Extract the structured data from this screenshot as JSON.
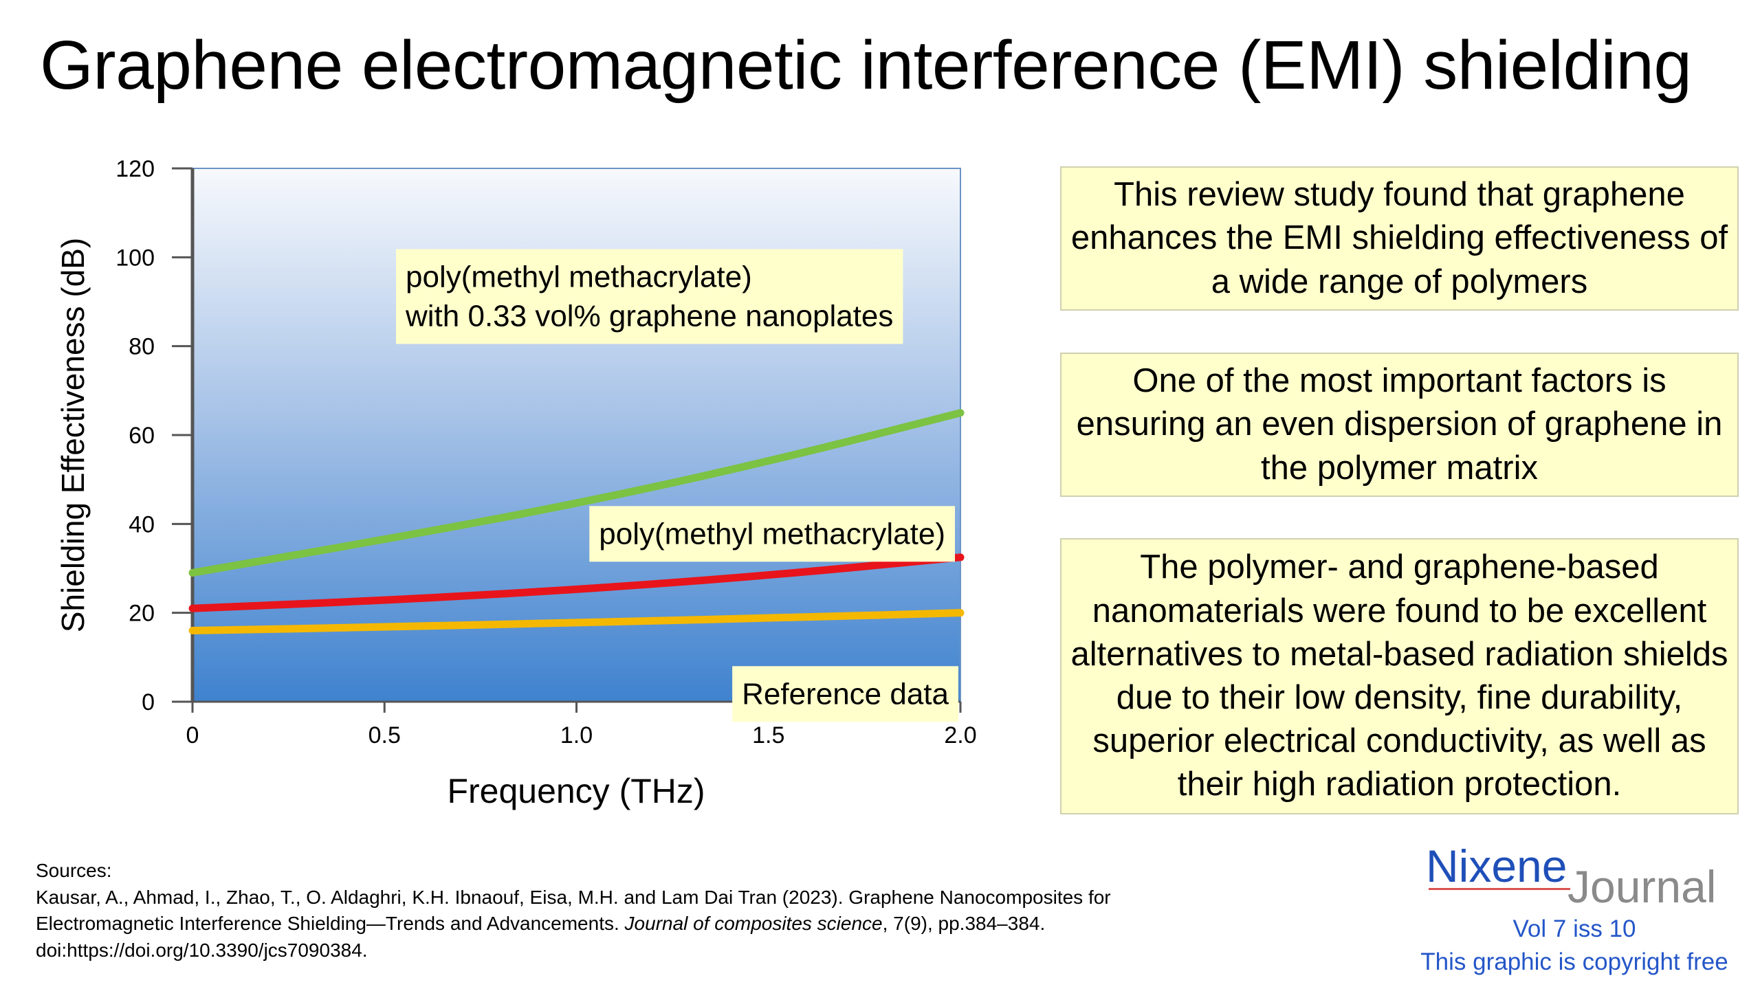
{
  "title": "Graphene electromagnetic interference (EMI) shielding",
  "chart_data": {
    "type": "line",
    "x_label": "Frequency  (THz)",
    "y_label": "Shielding Effectiveness  (dB)",
    "xlim": [
      0,
      2.0
    ],
    "ylim": [
      0,
      120
    ],
    "x_ticks": [
      "0",
      "0.5",
      "1.0",
      "1.5",
      "2.0"
    ],
    "x_tick_values": [
      0,
      0.5,
      1.0,
      1.5,
      2.0
    ],
    "y_ticks": [
      "0",
      "20",
      "40",
      "60",
      "80",
      "100",
      "120"
    ],
    "y_tick_values": [
      0,
      20,
      40,
      60,
      80,
      100,
      120
    ],
    "series": [
      {
        "name": "Reference data",
        "label_lines": [
          "Reference data"
        ],
        "color": "#f5b800",
        "x": [
          0,
          0.5,
          1.0,
          1.5,
          2.0
        ],
        "y": [
          16,
          16.8,
          17.8,
          18.8,
          20
        ]
      },
      {
        "name": "poly(methyl methacrylate)",
        "label_lines": [
          "poly(methyl methacrylate)"
        ],
        "color": "#e8141b",
        "x": [
          0,
          0.5,
          1.0,
          1.5,
          2.0
        ],
        "y": [
          21,
          22.8,
          25.2,
          28.4,
          32.5
        ]
      },
      {
        "name": "poly(methyl methacrylate) with 0.33 vol% graphene nanoplates",
        "label_lines": [
          "poly(methyl methacrylate)",
          "with 0.33 vol% graphene nanoplates"
        ],
        "color": "#7cc243",
        "x": [
          0,
          0.5,
          1.0,
          1.5,
          2.0
        ],
        "y": [
          29,
          36.5,
          44.5,
          54,
          65
        ]
      }
    ]
  },
  "findings": [
    {
      "text": "This review study found that graphene enhances the EMI shielding effectiveness of a wide range of polymers"
    },
    {
      "text": "One of the most important factors is ensuring an even dispersion of graphene in the polymer matrix"
    },
    {
      "text": "The polymer- and graphene-based nanomaterials were found to be excellent alternatives to metal-based radiation shields due to their low density, fine durability, superior electrical conductivity, as well as their high radiation protection."
    }
  ],
  "sources": {
    "heading": "Sources:",
    "line1": "Kausar, A., Ahmad, I., Zhao, T., O. Aldaghri, K.H. Ibnaouf, Eisa, M.H. and Lam Dai Tran (2023). Graphene Nanocomposites for",
    "line2_pre": "Electromagnetic Interference Shielding—Trends and Advancements. ",
    "line2_journal": "Journal of composites science",
    "line2_post": ", 7(9), pp.384–384.",
    "line3": "doi:https://doi.org/10.3390/jcs7090384."
  },
  "logo": {
    "brand": "Nixene",
    "word": "Journal"
  },
  "footer": {
    "volume": "Vol 7 iss 10",
    "copyright": "This graphic is copyright free"
  },
  "colors": {
    "plot_top": "#f7f9fc",
    "plot_bottom": "#3f82ce",
    "label_bg": "#ffffcc",
    "brand": "#1f4fb8"
  }
}
